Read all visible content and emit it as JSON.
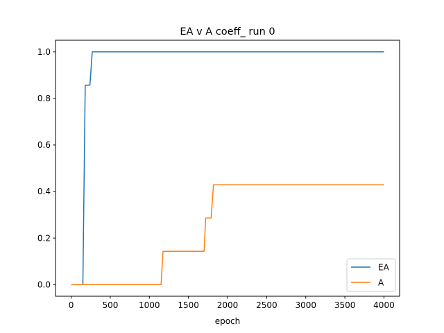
{
  "chart_data": {
    "type": "line",
    "title": "EA v A coeff_ run 0",
    "xlabel": "epoch",
    "ylabel": "",
    "xlim": [
      -200,
      4200
    ],
    "ylim": [
      -0.05,
      1.05
    ],
    "xticks": [
      0,
      500,
      1000,
      1500,
      2000,
      2500,
      3000,
      3500,
      4000
    ],
    "yticks": [
      0.0,
      0.2,
      0.4,
      0.6,
      0.8,
      1.0
    ],
    "xtick_labels": [
      "0",
      "500",
      "1000",
      "1500",
      "2000",
      "2500",
      "3000",
      "3500",
      "4000"
    ],
    "ytick_labels": [
      "0.0",
      "0.2",
      "0.4",
      "0.6",
      "0.8",
      "1.0"
    ],
    "grid": false,
    "legend_position": "lower-right",
    "series": [
      {
        "name": "EA",
        "color": "#1f77b4",
        "x": [
          0,
          150,
          180,
          240,
          270,
          4000
        ],
        "y": [
          0.0,
          0.0,
          0.857,
          0.857,
          1.0,
          1.0
        ]
      },
      {
        "name": "A",
        "color": "#ff7f0e",
        "x": [
          0,
          1150,
          1175,
          1700,
          1720,
          1790,
          1820,
          4000
        ],
        "y": [
          0.0,
          0.0,
          0.143,
          0.143,
          0.286,
          0.286,
          0.429,
          0.429
        ]
      }
    ]
  }
}
